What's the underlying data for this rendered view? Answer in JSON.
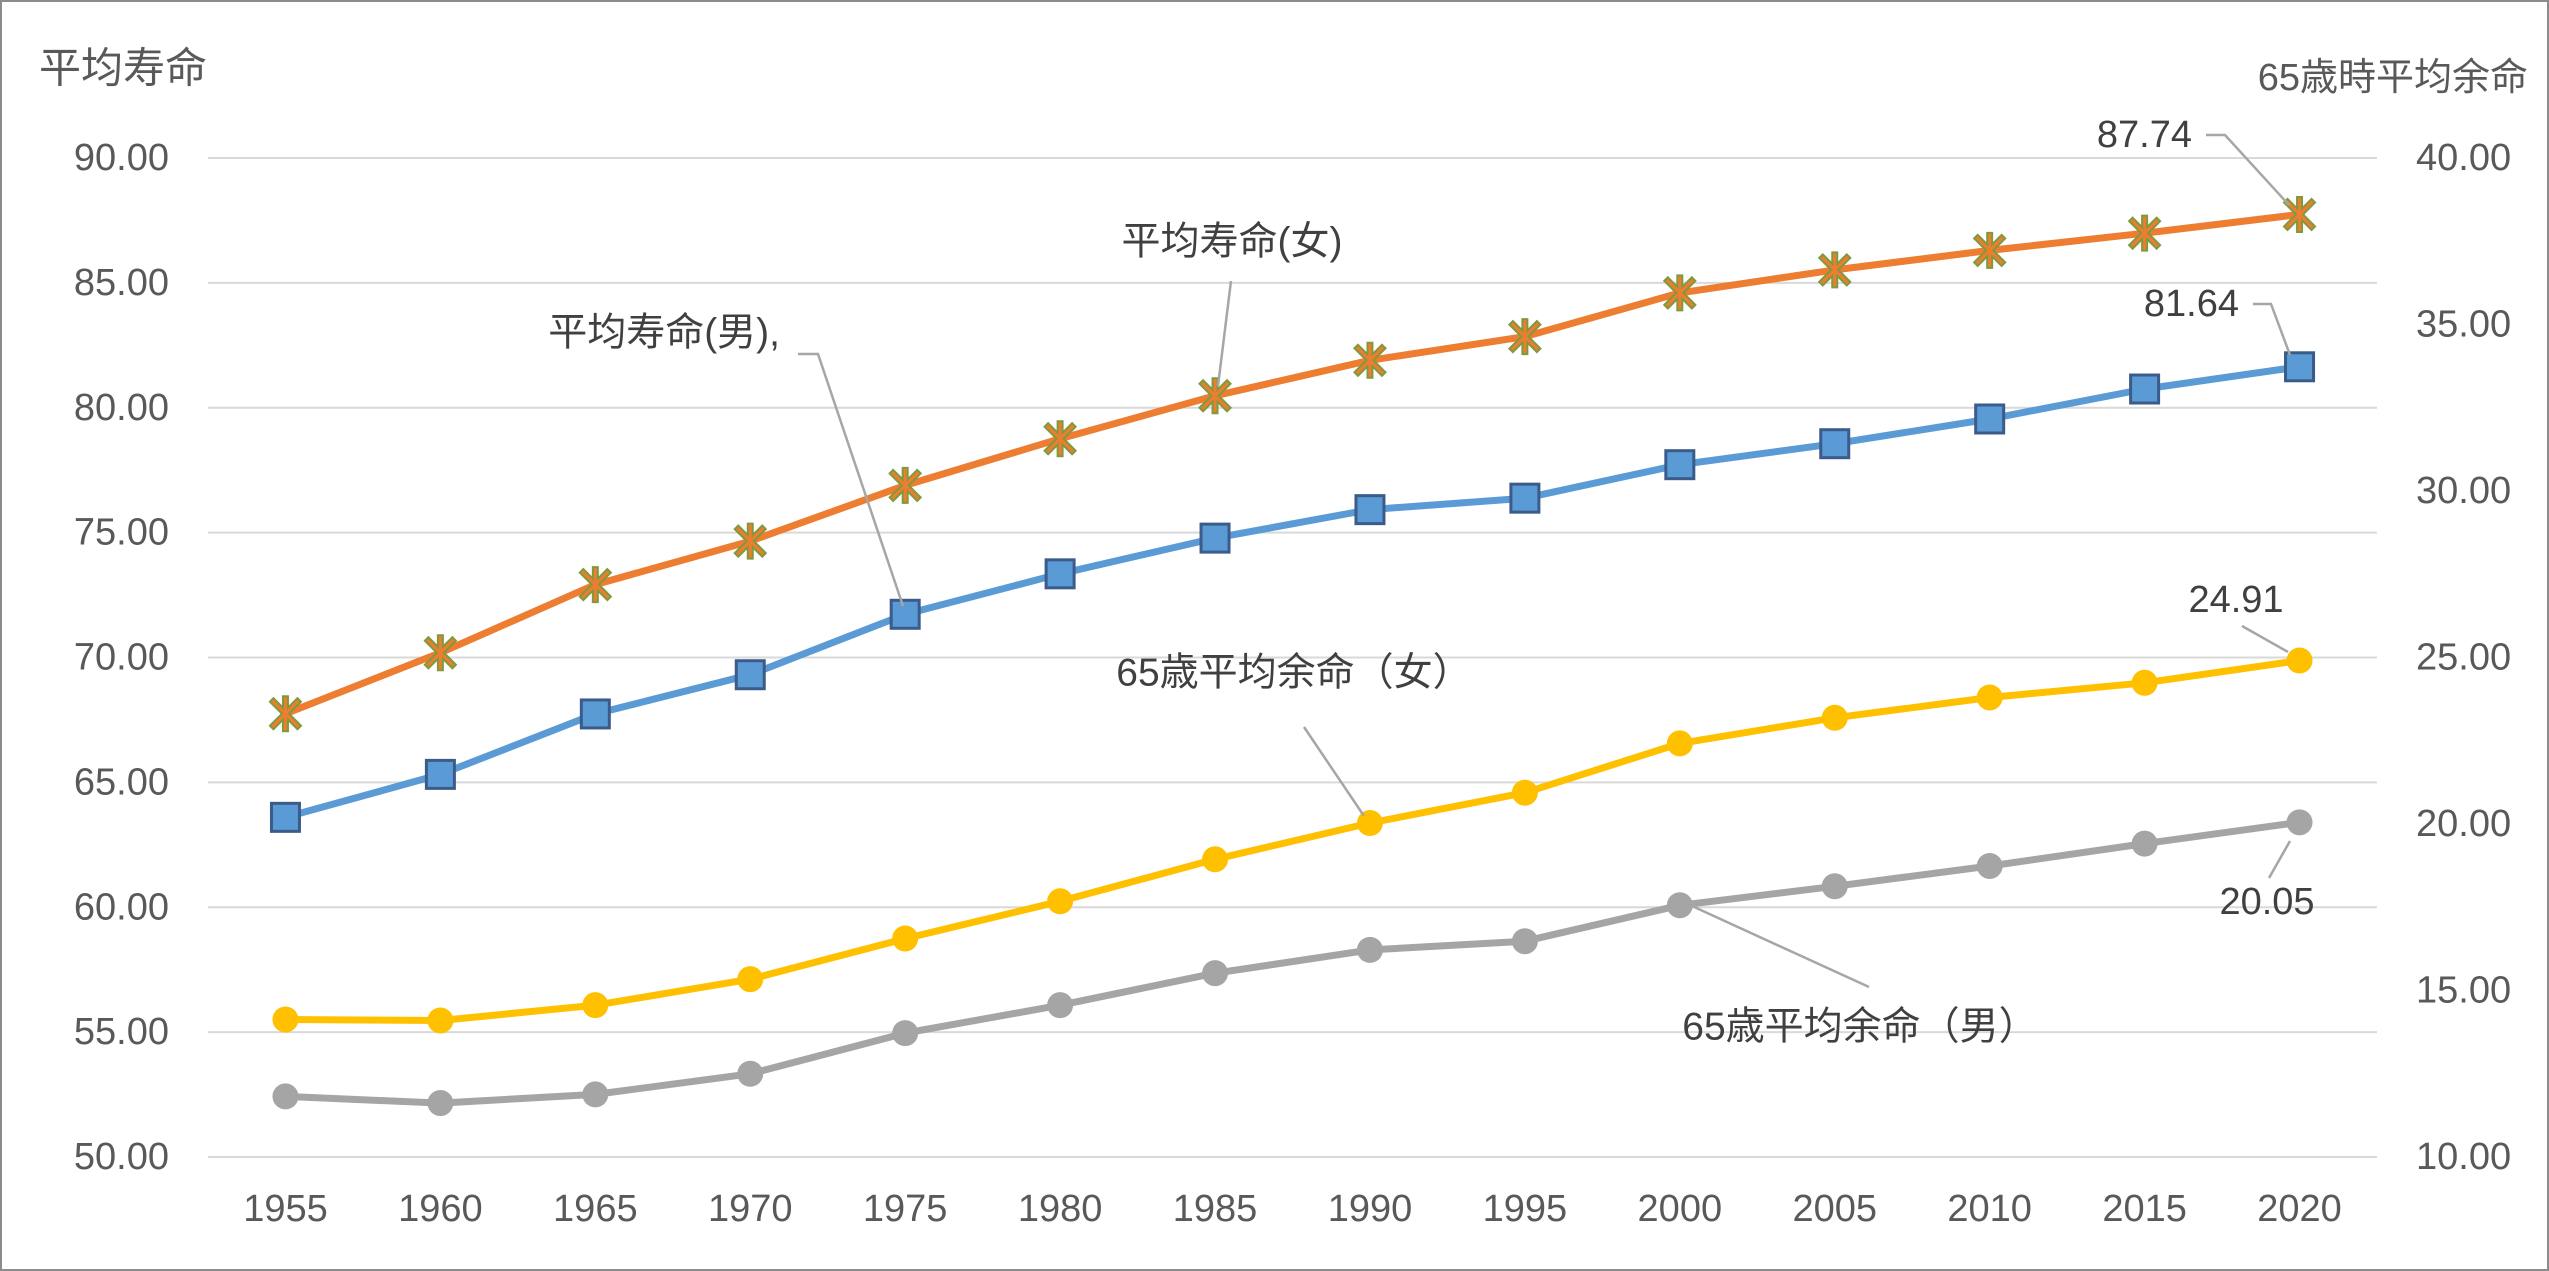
{
  "chart_data": {
    "type": "line",
    "categories": [
      "1955",
      "1960",
      "1965",
      "1970",
      "1975",
      "1980",
      "1985",
      "1990",
      "1995",
      "2000",
      "2005",
      "2010",
      "2015",
      "2020"
    ],
    "y_axis": {
      "label": "平均寿命",
      "ylim": [
        50,
        90
      ],
      "ticks": [
        "90.00",
        "85.00",
        "80.00",
        "75.00",
        "70.00",
        "65.00",
        "60.00",
        "55.00",
        "50.00"
      ]
    },
    "y2_axis": {
      "label": "65歳時平均余命",
      "ylim": [
        10,
        40
      ],
      "ticks": [
        "40.00",
        "35.00",
        "30.00",
        "25.00",
        "20.00",
        "15.00",
        "10.00"
      ]
    },
    "grid": true,
    "series": [
      {
        "name": "平均寿命(男),",
        "axis": "left",
        "color": "#5b9bd5",
        "marker": "square",
        "marker_edge_color": "#3b5b8a",
        "values": [
          63.6,
          65.32,
          67.74,
          69.31,
          71.73,
          73.35,
          74.78,
          75.92,
          76.38,
          77.72,
          78.56,
          79.55,
          80.75,
          81.64
        ],
        "data_label": {
          "category": "2020",
          "text": "81.64"
        }
      },
      {
        "name": "平均寿命(女)",
        "axis": "left",
        "color": "#ed7d31",
        "marker": "star",
        "marker_edge_color": "#7f9a3c",
        "values": [
          67.75,
          70.19,
          72.92,
          74.66,
          76.89,
          78.76,
          80.48,
          81.9,
          82.85,
          84.6,
          85.52,
          86.3,
          86.99,
          87.74
        ],
        "data_label": {
          "category": "2020",
          "text": "87.74"
        }
      },
      {
        "name": "65歳平均余命（女）",
        "axis": "right",
        "color": "#ffc000",
        "marker": "circle",
        "values": [
          14.13,
          14.1,
          14.56,
          15.34,
          16.56,
          17.68,
          18.94,
          20.03,
          20.94,
          22.42,
          23.19,
          23.8,
          24.24,
          24.91
        ],
        "data_label": {
          "category": "2020",
          "text": "24.91"
        }
      },
      {
        "name": "65歳平均余命（男）",
        "axis": "right",
        "color": "#a5a5a5",
        "marker": "circle",
        "values": [
          11.82,
          11.62,
          11.88,
          12.5,
          13.72,
          14.56,
          15.52,
          16.22,
          16.48,
          17.56,
          18.13,
          18.74,
          19.41,
          20.05
        ],
        "data_label": {
          "category": "2020",
          "text": "20.05"
        }
      }
    ]
  }
}
